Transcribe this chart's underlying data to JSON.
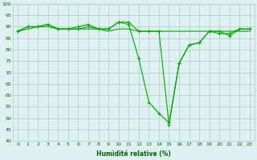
{
  "xlabel": "Humidité relative (%)",
  "line1": {
    "x": [
      0,
      1,
      2,
      3,
      4,
      5,
      6,
      7,
      8,
      9,
      10,
      11,
      12,
      13,
      14,
      15,
      16,
      17,
      18,
      19,
      20,
      21,
      22,
      23
    ],
    "y": [
      88,
      90,
      90,
      91,
      89,
      89,
      89,
      90,
      89,
      89,
      92,
      91,
      76,
      57,
      52,
      48,
      74,
      82,
      83,
      88,
      87,
      87,
      89,
      89
    ],
    "color": "#00aa00",
    "linewidth": 0.8,
    "markersize": 3.5
  },
  "line2": {
    "x": [
      0,
      1,
      2,
      3,
      4,
      5,
      6,
      7,
      8,
      9,
      10,
      11,
      12,
      13,
      14,
      15,
      16,
      17,
      18,
      19,
      20,
      21,
      22,
      23
    ],
    "y": [
      88,
      89,
      90,
      90,
      89,
      89,
      89,
      89,
      89,
      88,
      89,
      89,
      88,
      88,
      88,
      88,
      88,
      88,
      88,
      88,
      88,
      88,
      88,
      88
    ],
    "color": "#00aa00",
    "linewidth": 0.8,
    "markersize": 0
  },
  "line3": {
    "x": [
      0,
      1,
      2,
      3,
      4,
      5,
      6,
      7,
      8,
      9,
      10,
      11,
      12,
      13,
      14,
      15,
      16,
      17,
      18,
      19,
      20,
      21,
      22,
      23
    ],
    "y": [
      88,
      90,
      90,
      91,
      89,
      89,
      90,
      91,
      89,
      89,
      92,
      92,
      88,
      88,
      88,
      47,
      74,
      82,
      83,
      88,
      88,
      86,
      89,
      89
    ],
    "color": "#00aa00",
    "linewidth": 0.8,
    "markersize": 3.5
  },
  "bg_color": "#dff0f0",
  "grid_color": "#aacece",
  "line_color": "#007700",
  "tick_color": "#006600",
  "xlim": [
    -0.5,
    23.5
  ],
  "ylim": [
    40,
    100
  ],
  "yticks": [
    40,
    45,
    50,
    55,
    60,
    65,
    70,
    75,
    80,
    85,
    90,
    95,
    100
  ],
  "xticks": [
    0,
    1,
    2,
    3,
    4,
    5,
    6,
    7,
    8,
    9,
    10,
    11,
    12,
    13,
    14,
    15,
    16,
    17,
    18,
    19,
    20,
    21,
    22,
    23
  ],
  "tick_fontsize": 4.5,
  "xlabel_fontsize": 5.5
}
